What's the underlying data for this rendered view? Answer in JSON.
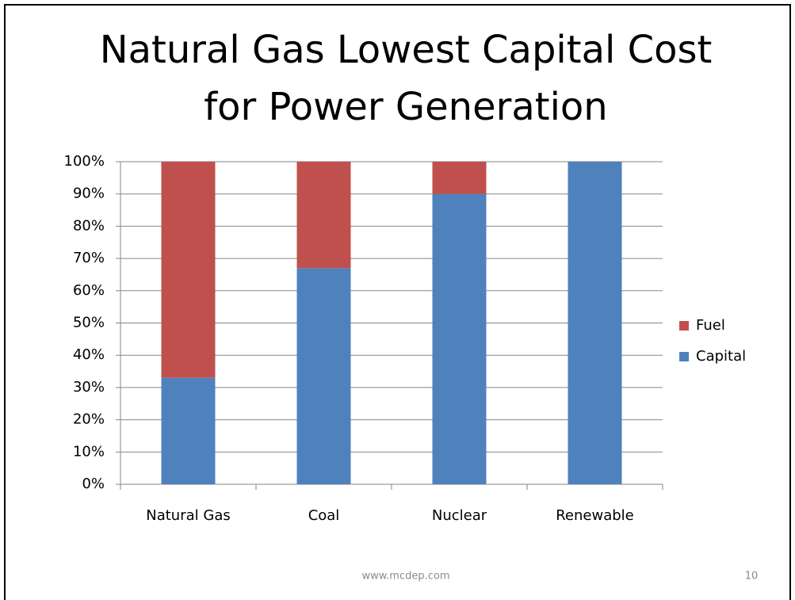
{
  "chart_data": {
    "type": "stacked_bar",
    "title": [
      "Natural Gas Lowest Capital Cost",
      "for Power Generation"
    ],
    "categories": [
      "Natural Gas",
      "Coal",
      "Nuclear",
      "Renewable"
    ],
    "series": [
      {
        "name": "Capital",
        "color": "#4f81bd",
        "values": [
          33,
          67,
          90,
          100
        ]
      },
      {
        "name": "Fuel",
        "color": "#c0504d",
        "values": [
          67,
          33,
          10,
          0
        ]
      }
    ],
    "ylim": [
      0,
      100
    ],
    "yticks": [
      {
        "value": 0,
        "label": "0%"
      },
      {
        "value": 10,
        "label": "10%"
      },
      {
        "value": 20,
        "label": "20%"
      },
      {
        "value": 30,
        "label": "30%"
      },
      {
        "value": 40,
        "label": "40%"
      },
      {
        "value": 50,
        "label": "50%"
      },
      {
        "value": 60,
        "label": "60%"
      },
      {
        "value": 70,
        "label": "70%"
      },
      {
        "value": 80,
        "label": "80%"
      },
      {
        "value": 90,
        "label": "90%"
      },
      {
        "value": 100,
        "label": "100%"
      }
    ],
    "grid": true,
    "legend": "right"
  },
  "slide": {
    "footer": "www.mcdep.com",
    "page_number": "10"
  }
}
